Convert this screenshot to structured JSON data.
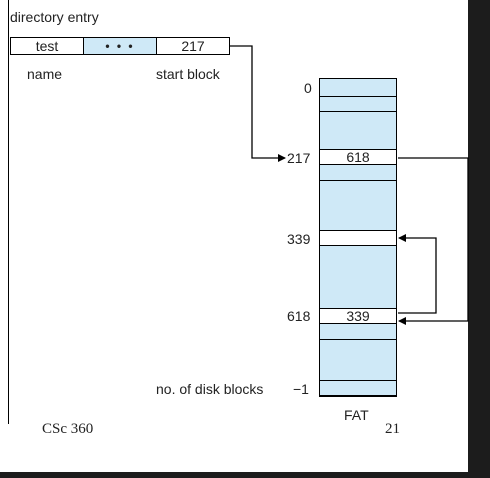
{
  "directory": {
    "title": "directory entry",
    "entry_name": "test",
    "entry_dots": "• • •",
    "entry_start": "217",
    "label_name": "name",
    "label_start": "start block"
  },
  "fat": {
    "title": "FAT",
    "index_0": "0",
    "index_217": "217",
    "index_339": "339",
    "index_618": "618",
    "entry_217": "618",
    "entry_618": "339",
    "disk_blocks_label": "no. of disk blocks",
    "disk_blocks_index": "−1"
  },
  "footer": {
    "course": "CSc 360",
    "page": "21"
  }
}
